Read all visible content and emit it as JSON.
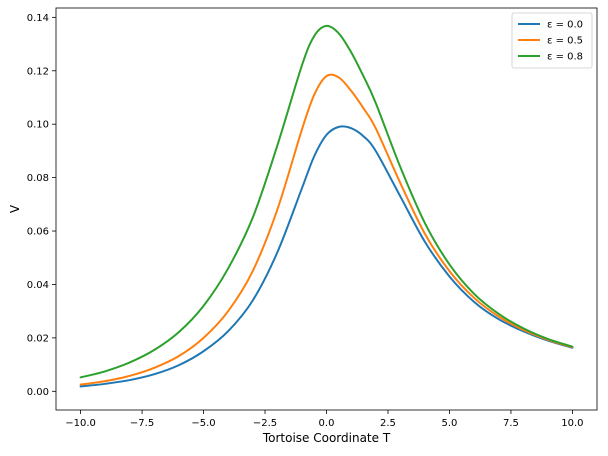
{
  "chart_data": {
    "type": "line",
    "title": "",
    "xlabel": "Tortoise Coordinate T",
    "ylabel": "V",
    "xlim": [
      -11.0,
      11.0
    ],
    "ylim": [
      -0.007,
      0.1435
    ],
    "xticks": [
      -10.0,
      -7.5,
      -5.0,
      -2.5,
      0.0,
      2.5,
      5.0,
      7.5,
      10.0
    ],
    "xtick_labels": [
      "−10.0",
      "−7.5",
      "−5.0",
      "−2.5",
      "0.0",
      "2.5",
      "5.0",
      "7.5",
      "10.0"
    ],
    "yticks": [
      0.0,
      0.02,
      0.04,
      0.06,
      0.08,
      0.1,
      0.12,
      0.14
    ],
    "ytick_labels": [
      "0.00",
      "0.02",
      "0.04",
      "0.06",
      "0.08",
      "0.10",
      "0.12",
      "0.14"
    ],
    "grid": false,
    "legend_position": "top-right",
    "x": [
      -10,
      -9,
      -8,
      -7,
      -6,
      -5,
      -4,
      -3,
      -2,
      -1,
      -0.5,
      0,
      0.5,
      1,
      1.5,
      2,
      3,
      4,
      5,
      6,
      7,
      8,
      9,
      10
    ],
    "series": [
      {
        "name": "ε = 0.0",
        "color": "#1f77b4",
        "values": [
          0.0018,
          0.0028,
          0.0042,
          0.0064,
          0.0098,
          0.015,
          0.0225,
          0.034,
          0.052,
          0.076,
          0.088,
          0.096,
          0.099,
          0.0985,
          0.0955,
          0.09,
          0.073,
          0.056,
          0.043,
          0.0335,
          0.027,
          0.0225,
          0.019,
          0.0163
        ]
      },
      {
        "name": "ε = 0.5",
        "color": "#ff7f0e",
        "values": [
          0.0025,
          0.0038,
          0.0058,
          0.0088,
          0.0132,
          0.02,
          0.03,
          0.045,
          0.068,
          0.098,
          0.111,
          0.118,
          0.1175,
          0.1125,
          0.106,
          0.0985,
          0.078,
          0.059,
          0.045,
          0.035,
          0.028,
          0.023,
          0.0193,
          0.0165
        ]
      },
      {
        "name": "ε = 0.8",
        "color": "#2ca02c",
        "values": [
          0.0052,
          0.0075,
          0.0108,
          0.0155,
          0.0222,
          0.032,
          0.046,
          0.065,
          0.092,
          0.122,
          0.133,
          0.1368,
          0.134,
          0.127,
          0.118,
          0.108,
          0.084,
          0.063,
          0.0475,
          0.0365,
          0.029,
          0.0236,
          0.0196,
          0.0167
        ]
      }
    ]
  }
}
